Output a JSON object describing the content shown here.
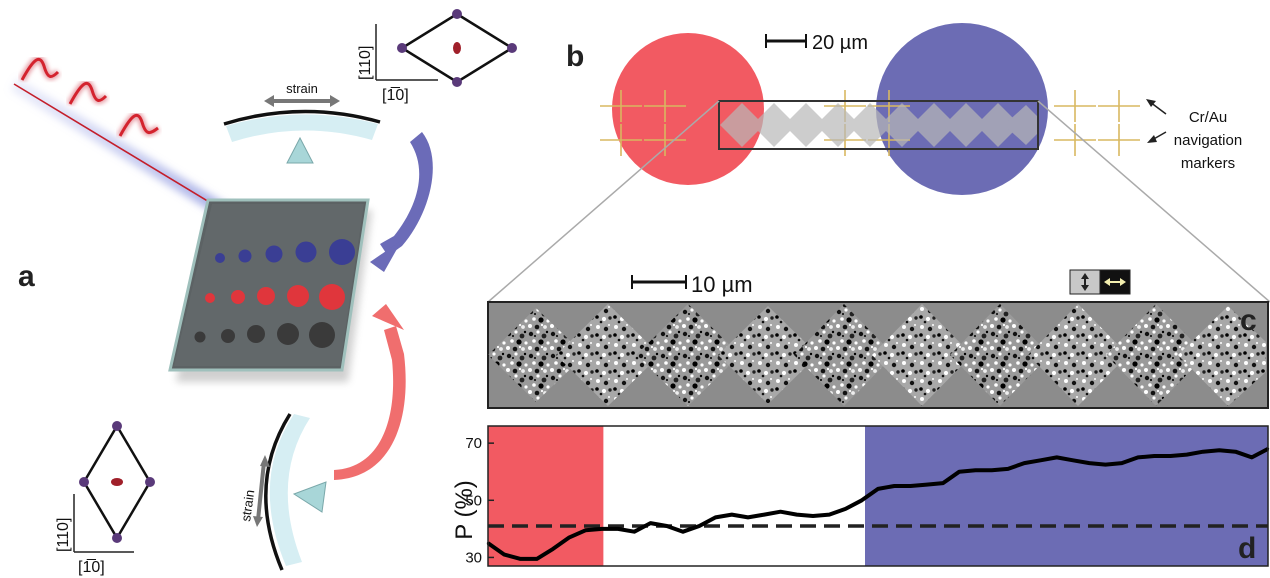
{
  "panel_labels": {
    "a": "a",
    "b": "b",
    "c": "c",
    "d": "d"
  },
  "panel_a": {
    "strain_label_top": "strain",
    "strain_label_bottom": "strain",
    "axis_y_top": "[110]",
    "axis_x_top": "[1̅0]",
    "axis_y_bottom": "[110]",
    "axis_x_bottom": "[1̅0]",
    "colors": {
      "blue": "#3a3e94",
      "red": "#e0363c",
      "dark": "#3a3a3a",
      "arrow_blue": "#6b6bb8",
      "arrow_red": "#f06e6e"
    }
  },
  "panel_b": {
    "scale_label": "20 µm",
    "marker_caption": [
      "Cr/Au",
      "navigation",
      "markers"
    ],
    "colors": {
      "red_circle": "#f25a62",
      "blue_circle": "#6c6cb4",
      "marker": "#d8b860"
    }
  },
  "panel_c": {
    "scale_label": "10 µm",
    "colors": {
      "background": "#8c8c8c"
    }
  },
  "chart_data": {
    "type": "line",
    "ylabel": "P (%)",
    "yticks": [
      30,
      50,
      70
    ],
    "ylim": [
      27,
      76
    ],
    "xlim": [
      0,
      48
    ],
    "reference_line": 41,
    "regions": [
      {
        "start": 0,
        "end": 7.1,
        "color": "#f25a62"
      },
      {
        "start": 23.2,
        "end": 48,
        "color": "#6c6cb4"
      }
    ],
    "x": [
      0,
      1,
      2,
      3,
      4,
      5,
      6,
      7,
      8,
      9,
      10,
      11,
      12,
      13,
      14,
      15,
      16,
      17,
      18,
      19,
      20,
      21,
      22,
      23,
      24,
      25,
      26,
      27,
      28,
      29,
      30,
      31,
      32,
      33,
      34,
      35,
      36,
      37,
      38,
      39,
      40,
      41,
      42,
      43,
      44,
      45,
      46,
      47,
      48
    ],
    "values": [
      35,
      31,
      29.5,
      29.5,
      33,
      37,
      39.5,
      40,
      40,
      39,
      42,
      41,
      39,
      41,
      44,
      45,
      44,
      45,
      46,
      45,
      44.5,
      45,
      47,
      50,
      54,
      55,
      55,
      55.5,
      56,
      60,
      60.5,
      60.5,
      61,
      63,
      64,
      65,
      64,
      63,
      62.5,
      63,
      65,
      65.5,
      65.5,
      66,
      67,
      67.5,
      67,
      65,
      68
    ]
  }
}
